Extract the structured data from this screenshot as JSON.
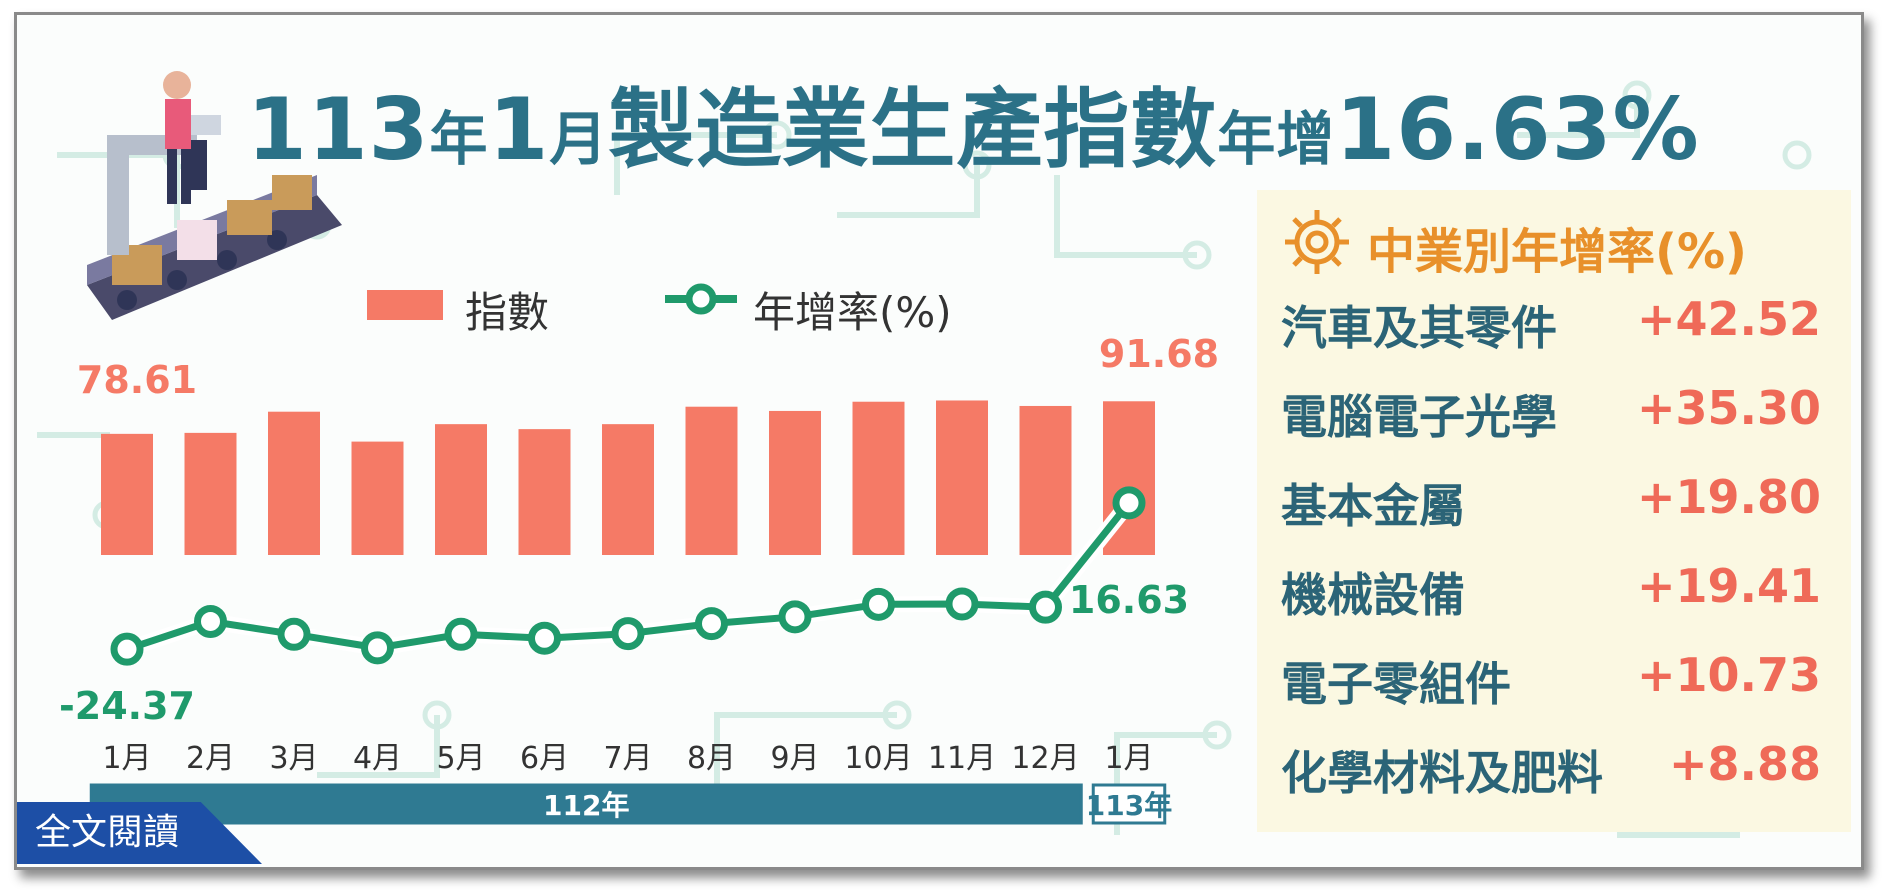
{
  "title": {
    "part1": "113",
    "part2": "年",
    "part3": "1",
    "part4": "月",
    "part5": "製造業生產指數",
    "part6": "年增",
    "part7": "16.63%"
  },
  "legend": {
    "bar_label": "指數",
    "line_label": "年增率(%)"
  },
  "colors": {
    "bar": "#f57a66",
    "line": "#1f9a6b",
    "title": "#2b7187",
    "positive": "#ef6a58",
    "panel_title": "#e8902a",
    "year_band": "#2f7a92"
  },
  "chart_data": {
    "type": "bar",
    "categories": [
      "1月",
      "2月",
      "3月",
      "4月",
      "5月",
      "6月",
      "7月",
      "8月",
      "9月",
      "10月",
      "11月",
      "12月",
      "1月"
    ],
    "year_groups": [
      {
        "label": "112年",
        "from": 0,
        "to": 11
      },
      {
        "label": "113年",
        "from": 12,
        "to": 12
      }
    ],
    "series": [
      {
        "name": "指數",
        "type": "bar",
        "values": [
          78.61,
          79.0,
          87.5,
          75.5,
          82.5,
          80.5,
          82.5,
          89.5,
          87.8,
          91.5,
          92.0,
          89.8,
          91.68
        ]
      },
      {
        "name": "年增率(%)",
        "type": "line",
        "values": [
          -24.37,
          -16.6,
          -20.2,
          -24.0,
          -20.2,
          -21.3,
          -20.0,
          -17.2,
          -15.3,
          -11.8,
          -11.7,
          -12.6,
          16.63
        ]
      }
    ],
    "data_labels": [
      {
        "series": 0,
        "index": 0,
        "text": "78.61"
      },
      {
        "series": 0,
        "index": 12,
        "text": "91.68"
      },
      {
        "series": 1,
        "index": 0,
        "text": "-24.37"
      },
      {
        "series": 1,
        "index": 12,
        "text": "16.63"
      }
    ],
    "legend_position": "top"
  },
  "industry_panel": {
    "title": "中業別年增率(%)",
    "items": [
      {
        "name": "汽車及其零件",
        "value": "+42.52"
      },
      {
        "name": "電腦電子光學",
        "value": "+35.30"
      },
      {
        "name": "基本金屬",
        "value": "+19.80"
      },
      {
        "name": "機械設備",
        "value": "+19.41"
      },
      {
        "name": "電子零組件",
        "value": "+10.73"
      },
      {
        "name": "化學材料及肥料",
        "value": "+8.88"
      }
    ]
  },
  "read_more_label": "全文閱讀"
}
